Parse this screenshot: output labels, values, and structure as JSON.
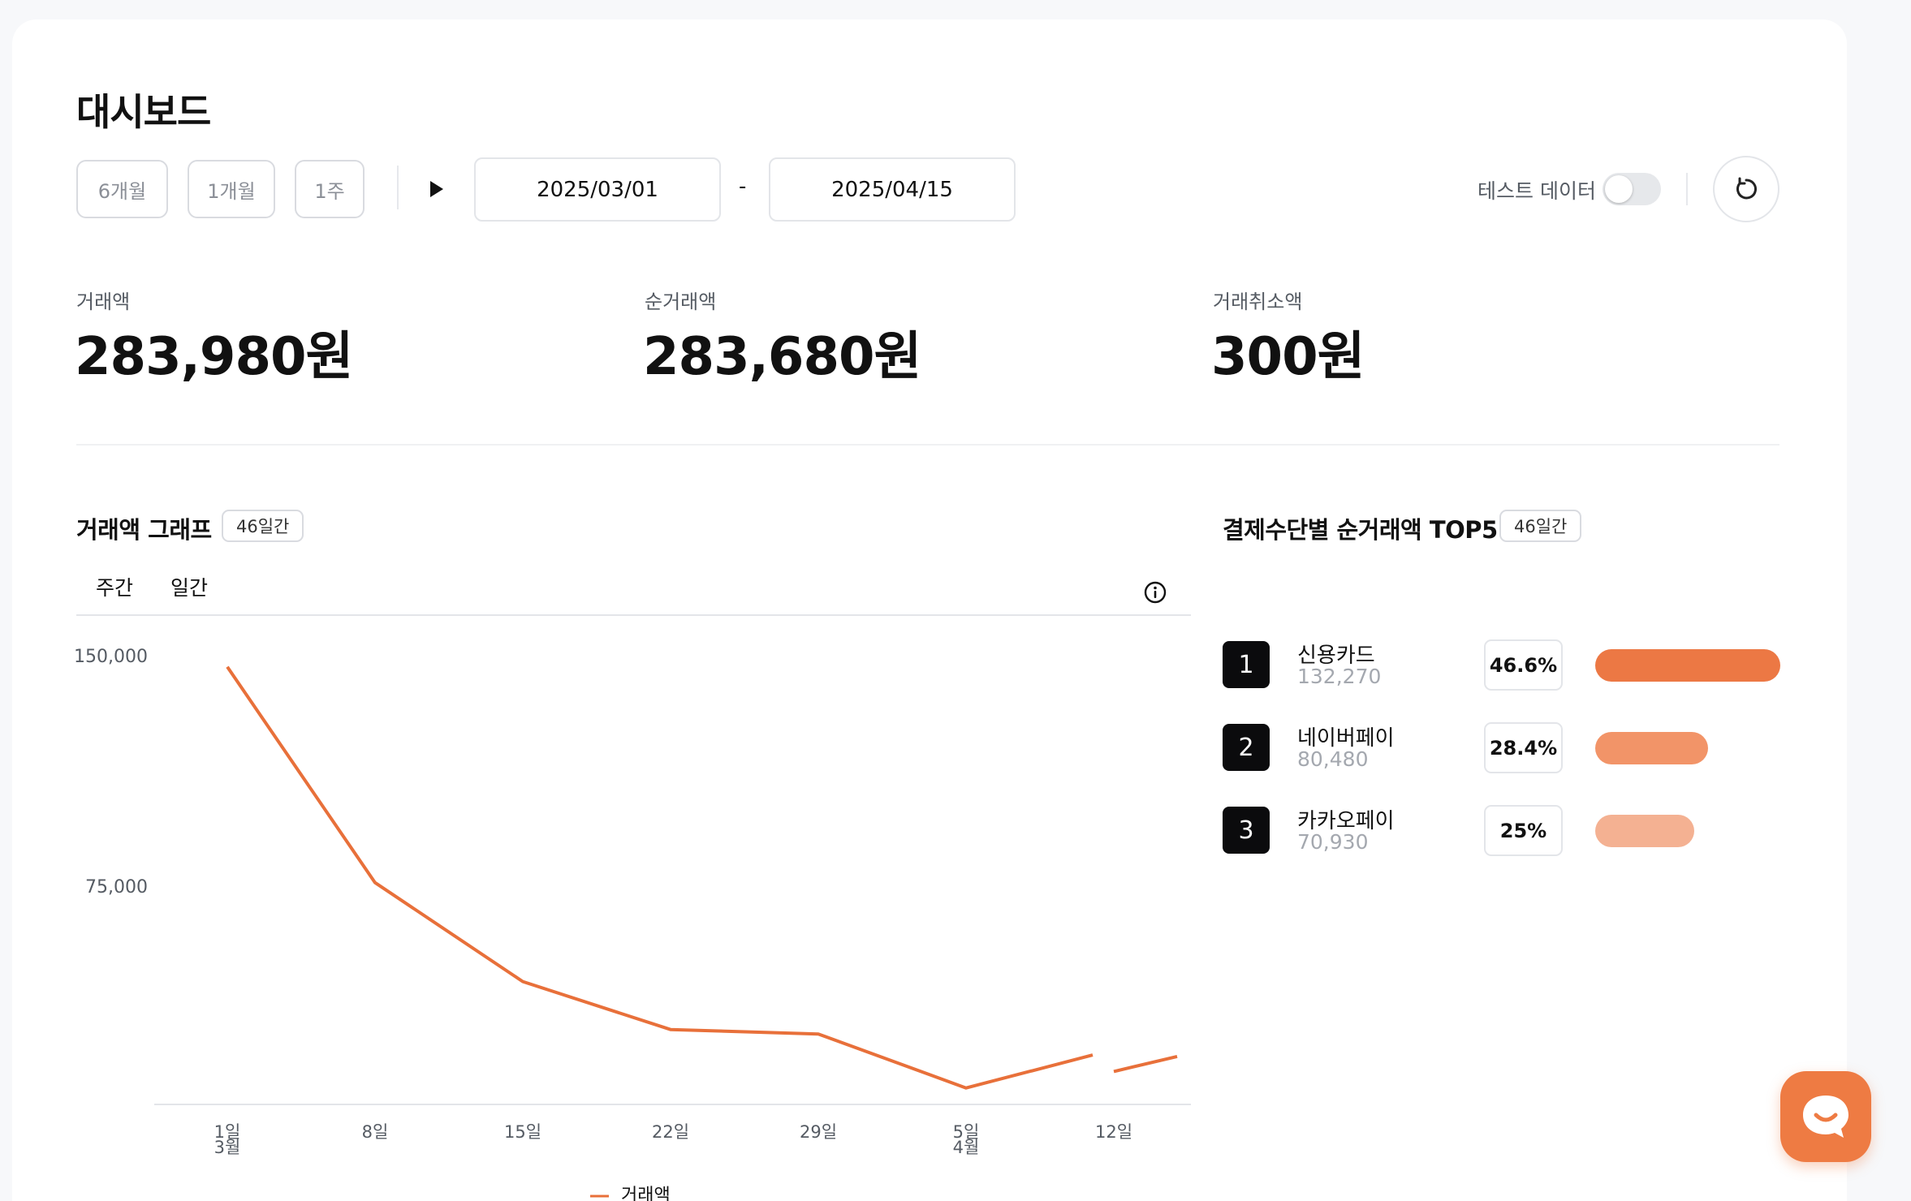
{
  "page_title": "대시보드",
  "filters": {
    "periods": [
      "6개월",
      "1개월",
      "1주"
    ],
    "start_date": "2025/03/01",
    "separator": "-",
    "end_date": "2025/04/15",
    "test_data_label": "테스트 데이터",
    "test_data_enabled": false
  },
  "stats": [
    {
      "label": "거래액",
      "value": "283,980원"
    },
    {
      "label": "순거래액",
      "value": "283,680원"
    },
    {
      "label": "거래취소액",
      "value": "300원"
    }
  ],
  "graph": {
    "title": "거래액 그래프",
    "badge": "46일간",
    "tabs": [
      "주간",
      "일간"
    ]
  },
  "chart_data": {
    "type": "line",
    "y_ticks": [
      "150,000",
      "75,000"
    ],
    "ylim": [
      0,
      150000
    ],
    "x_tick_labels": [
      {
        "day": "1일",
        "month": "3월"
      },
      {
        "day": "8일",
        "month": ""
      },
      {
        "day": "15일",
        "month": ""
      },
      {
        "day": "22일",
        "month": ""
      },
      {
        "day": "29일",
        "month": ""
      },
      {
        "day": "5일",
        "month": "4월"
      },
      {
        "day": "12일",
        "month": ""
      }
    ],
    "series": [
      {
        "name": "거래액",
        "color": "#e8703a",
        "segments": [
          [
            {
              "x": "2025-03-01",
              "y": 146000
            },
            {
              "x": "2025-03-08",
              "y": 74000
            },
            {
              "x": "2025-03-15",
              "y": 41000
            },
            {
              "x": "2025-03-22",
              "y": 25000
            },
            {
              "x": "2025-03-29",
              "y": 23500
            },
            {
              "x": "2025-04-05",
              "y": 5500
            },
            {
              "x": "2025-04-11",
              "y": 16500
            }
          ],
          [
            {
              "x": "2025-04-12",
              "y": 11000
            },
            {
              "x": "2025-04-15",
              "y": 16000
            }
          ]
        ]
      }
    ]
  },
  "top5": {
    "title": "결제수단별 순거래액 TOP5",
    "badge": "46일간",
    "items": [
      {
        "rank": "1",
        "name": "신용카드",
        "amount": "132,270",
        "percent": "46.6%",
        "share": 0.466,
        "color": "#ec7844"
      },
      {
        "rank": "2",
        "name": "네이버페이",
        "amount": "80,480",
        "percent": "28.4%",
        "share": 0.284,
        "color": "#f29468"
      },
      {
        "rank": "3",
        "name": "카카오페이",
        "amount": "70,930",
        "percent": "25%",
        "share": 0.25,
        "color": "#f4b192"
      }
    ]
  },
  "icons": {
    "play": "play-icon",
    "refresh": "refresh-icon",
    "info": "info-icon",
    "chat": "chat-icon"
  }
}
